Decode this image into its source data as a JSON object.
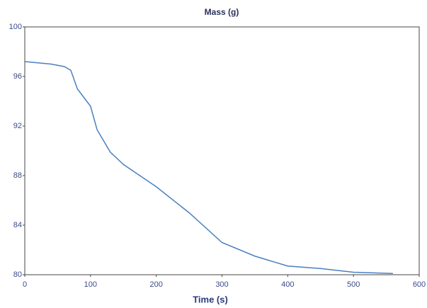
{
  "chart_data": {
    "type": "line",
    "title": "Mass (g)",
    "x_label": "Time (s)",
    "x": [
      0,
      20,
      40,
      60,
      70,
      80,
      90,
      100,
      110,
      130,
      150,
      200,
      250,
      300,
      350,
      400,
      450,
      500,
      560
    ],
    "series": [
      {
        "name": "Mass",
        "color": "#4a7fc1",
        "values": [
          97.2,
          97.1,
          97.0,
          96.8,
          96.5,
          95.0,
          94.3,
          93.6,
          91.7,
          89.9,
          88.9,
          87.1,
          85.0,
          82.6,
          81.5,
          80.7,
          80.5,
          80.2,
          80.1
        ]
      }
    ],
    "xlim": [
      0,
      600
    ],
    "xticks": [
      0,
      100,
      200,
      300,
      400,
      500,
      600
    ],
    "ylim": [
      80,
      100
    ],
    "yticks": [
      80,
      84,
      88,
      92,
      96,
      100
    ]
  }
}
